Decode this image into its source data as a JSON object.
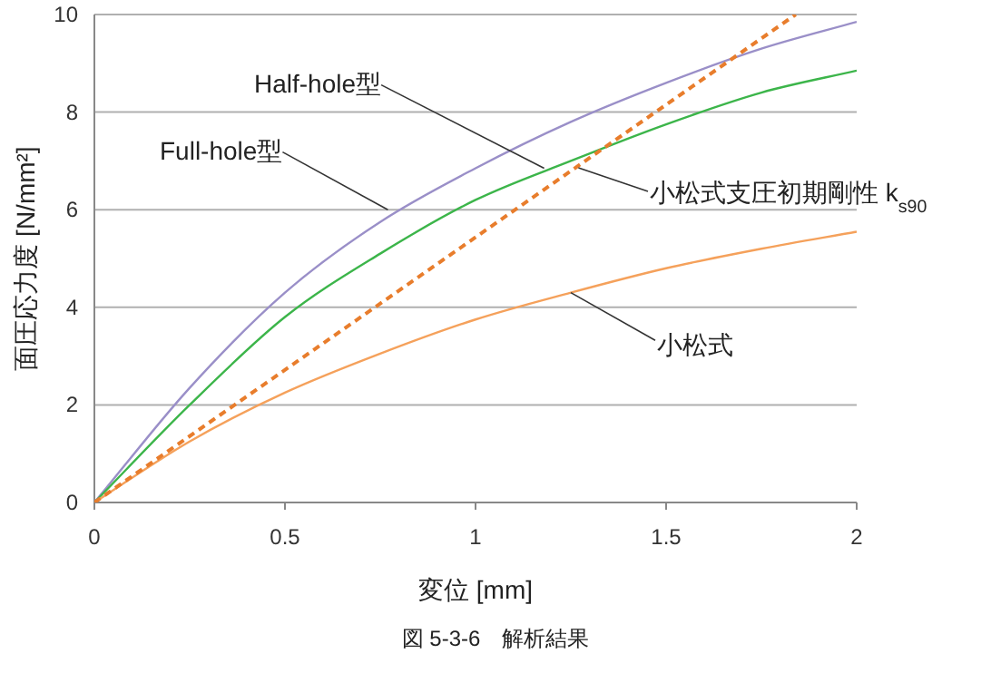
{
  "chart_data": {
    "type": "line",
    "xlabel": "変位 [mm]",
    "ylabel": "面圧応力度 [N/mm²]",
    "xlim": [
      0,
      2
    ],
    "ylim": [
      0,
      10
    ],
    "xticks": [
      0,
      0.5,
      1,
      1.5,
      2
    ],
    "yticks": [
      0,
      2,
      4,
      6,
      8,
      10
    ],
    "grid": "y",
    "line_style": "solid",
    "x": [
      0,
      0.25,
      0.5,
      0.75,
      1,
      1.25,
      1.5,
      1.75,
      2
    ],
    "series": [
      {
        "color": "#9a8fc8",
        "values": [
          0,
          2.35,
          4.3,
          5.75,
          6.85,
          7.8,
          8.6,
          9.3,
          9.85
        ]
      },
      {
        "color": "#3cb54a",
        "values": [
          0,
          2.0,
          3.8,
          5.1,
          6.2,
          7.0,
          7.75,
          8.4,
          8.85
        ]
      },
      {
        "color": "#f5a15b",
        "values": [
          0,
          1.25,
          2.25,
          3.05,
          3.75,
          4.3,
          4.8,
          5.2,
          5.55
        ]
      },
      {
        "color": "#e87d2c",
        "x": [
          0,
          1.84
        ],
        "values": [
          0,
          10
        ],
        "line_style": "dashed"
      }
    ],
    "annotations": [
      {
        "text": "Half-hole型",
        "x": 1.18,
        "y": 6.85
      },
      {
        "text": "Full-hole型",
        "x": 0.77,
        "y": 6.0
      },
      {
        "text": "小松式支圧初期剛性 k$_{s90}$",
        "x": 1.27,
        "y": 6.86
      },
      {
        "text": "小松式",
        "x": 1.25,
        "y": 4.3
      },
      "図 5-3-6　解析結果"
    ]
  }
}
